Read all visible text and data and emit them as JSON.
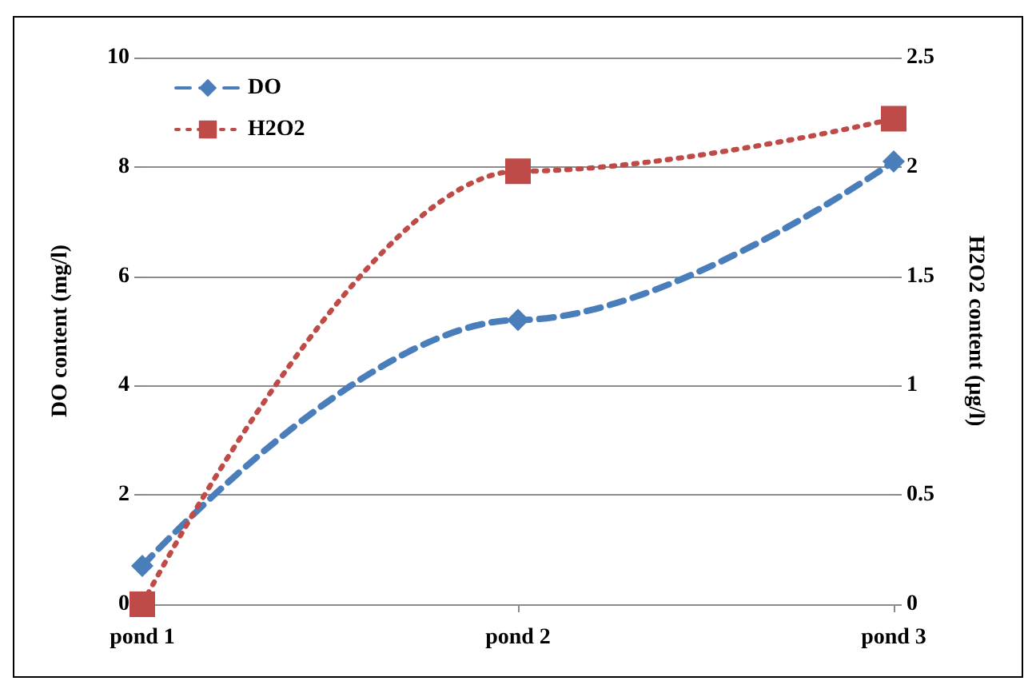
{
  "chart_data": {
    "type": "line",
    "xlabel": null,
    "ylabel": "DO content (mg/l)",
    "y2label": "H2O2 content (µg/l)",
    "categories": [
      "pond 1",
      "pond 2",
      "pond 3"
    ],
    "series": [
      {
        "name": "DO",
        "color": "#4a7ebb",
        "values": [
          0.7,
          5.2,
          8.1
        ],
        "marker": "diamond",
        "line_style": "dashed"
      },
      {
        "name": "H2O2",
        "color": "#be4b48",
        "values": [
          0,
          1.98,
          2.22
        ],
        "marker": "square",
        "line_style": "dotted",
        "axis": "y2"
      }
    ],
    "ylim": [
      0,
      10
    ],
    "yticks": [
      0,
      2,
      4,
      6,
      8,
      10
    ],
    "y2lim": [
      0,
      2.5
    ],
    "y2ticks": [
      0,
      0.5,
      1,
      1.5,
      2,
      2.5
    ],
    "grid": "y",
    "legend": "top left"
  }
}
